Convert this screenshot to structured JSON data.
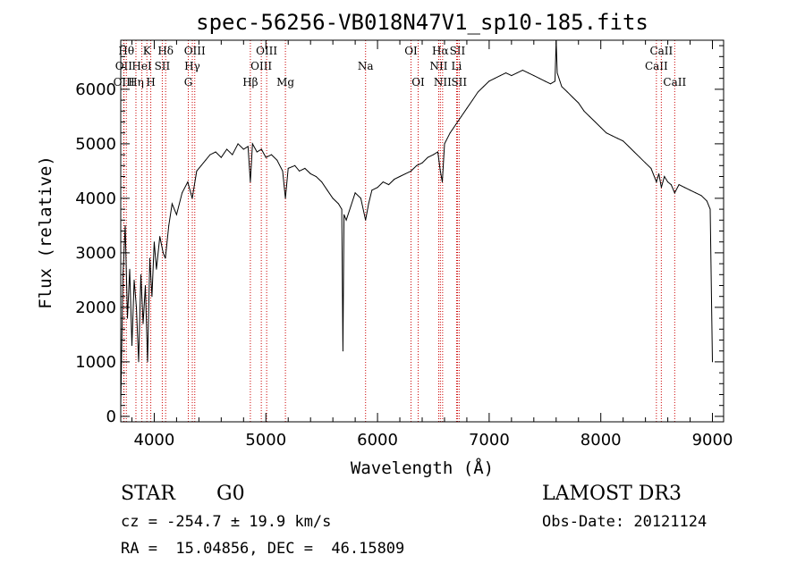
{
  "chart_data": {
    "type": "line",
    "title": "spec-56256-VB018N47V1_sp10-185.fits",
    "xlabel": "Wavelength (Å)",
    "ylabel": "Flux (relative)",
    "xlim": [
      3700,
      9100
    ],
    "ylim": [
      -100,
      6900
    ],
    "xticks": [
      4000,
      5000,
      6000,
      7000,
      8000,
      9000
    ],
    "xtick_labels": [
      "4000",
      "5000",
      "6000",
      "7000",
      "8000",
      "9000"
    ],
    "yticks": [
      0,
      1000,
      2000,
      3000,
      4000,
      5000,
      6000
    ],
    "ytick_labels": [
      "0",
      "1000",
      "2000",
      "3000",
      "4000",
      "5000",
      "6000"
    ],
    "grid": false,
    "series": [
      {
        "name": "spectrum",
        "color": "#000000",
        "points": [
          [
            3700,
            200
          ],
          [
            3720,
            2600
          ],
          [
            3740,
            3500
          ],
          [
            3760,
            1800
          ],
          [
            3780,
            2700
          ],
          [
            3800,
            1300
          ],
          [
            3820,
            2500
          ],
          [
            3840,
            2000
          ],
          [
            3860,
            1000
          ],
          [
            3880,
            2600
          ],
          [
            3900,
            1700
          ],
          [
            3920,
            2400
          ],
          [
            3940,
            1000
          ],
          [
            3960,
            2900
          ],
          [
            3980,
            2200
          ],
          [
            4000,
            3200
          ],
          [
            4020,
            2700
          ],
          [
            4050,
            3300
          ],
          [
            4080,
            3000
          ],
          [
            4100,
            2900
          ],
          [
            4130,
            3500
          ],
          [
            4160,
            3900
          ],
          [
            4200,
            3700
          ],
          [
            4250,
            4100
          ],
          [
            4300,
            4300
          ],
          [
            4340,
            4000
          ],
          [
            4380,
            4500
          ],
          [
            4420,
            4600
          ],
          [
            4460,
            4700
          ],
          [
            4500,
            4800
          ],
          [
            4550,
            4850
          ],
          [
            4600,
            4750
          ],
          [
            4650,
            4900
          ],
          [
            4700,
            4800
          ],
          [
            4750,
            5000
          ],
          [
            4800,
            4900
          ],
          [
            4840,
            4950
          ],
          [
            4861,
            4300
          ],
          [
            4880,
            5000
          ],
          [
            4920,
            4850
          ],
          [
            4960,
            4900
          ],
          [
            5000,
            4750
          ],
          [
            5050,
            4800
          ],
          [
            5100,
            4700
          ],
          [
            5150,
            4500
          ],
          [
            5175,
            4000
          ],
          [
            5200,
            4550
          ],
          [
            5260,
            4600
          ],
          [
            5300,
            4500
          ],
          [
            5350,
            4550
          ],
          [
            5400,
            4450
          ],
          [
            5450,
            4400
          ],
          [
            5500,
            4300
          ],
          [
            5550,
            4150
          ],
          [
            5600,
            4000
          ],
          [
            5650,
            3900
          ],
          [
            5680,
            3800
          ],
          [
            5690,
            1200
          ],
          [
            5700,
            3700
          ],
          [
            5720,
            3600
          ],
          [
            5760,
            3850
          ],
          [
            5800,
            4100
          ],
          [
            5850,
            4000
          ],
          [
            5893,
            3600
          ],
          [
            5920,
            3900
          ],
          [
            5950,
            4150
          ],
          [
            6000,
            4200
          ],
          [
            6050,
            4300
          ],
          [
            6100,
            4250
          ],
          [
            6150,
            4350
          ],
          [
            6200,
            4400
          ],
          [
            6250,
            4450
          ],
          [
            6300,
            4500
          ],
          [
            6350,
            4600
          ],
          [
            6400,
            4650
          ],
          [
            6450,
            4750
          ],
          [
            6500,
            4800
          ],
          [
            6540,
            4850
          ],
          [
            6563,
            4500
          ],
          [
            6580,
            4300
          ],
          [
            6600,
            5000
          ],
          [
            6650,
            5200
          ],
          [
            6700,
            5350
          ],
          [
            6750,
            5500
          ],
          [
            6800,
            5650
          ],
          [
            6850,
            5800
          ],
          [
            6900,
            5950
          ],
          [
            6950,
            6050
          ],
          [
            7000,
            6150
          ],
          [
            7050,
            6200
          ],
          [
            7100,
            6250
          ],
          [
            7150,
            6300
          ],
          [
            7200,
            6250
          ],
          [
            7250,
            6300
          ],
          [
            7300,
            6350
          ],
          [
            7350,
            6300
          ],
          [
            7400,
            6250
          ],
          [
            7450,
            6200
          ],
          [
            7500,
            6150
          ],
          [
            7550,
            6100
          ],
          [
            7590,
            6150
          ],
          [
            7600,
            6900
          ],
          [
            7610,
            6300
          ],
          [
            7650,
            6050
          ],
          [
            7700,
            5950
          ],
          [
            7750,
            5850
          ],
          [
            7800,
            5750
          ],
          [
            7850,
            5600
          ],
          [
            7900,
            5500
          ],
          [
            7950,
            5400
          ],
          [
            8000,
            5300
          ],
          [
            8050,
            5200
          ],
          [
            8100,
            5150
          ],
          [
            8150,
            5100
          ],
          [
            8200,
            5050
          ],
          [
            8250,
            4950
          ],
          [
            8300,
            4850
          ],
          [
            8350,
            4750
          ],
          [
            8400,
            4650
          ],
          [
            8450,
            4550
          ],
          [
            8498,
            4300
          ],
          [
            8520,
            4450
          ],
          [
            8542,
            4200
          ],
          [
            8570,
            4400
          ],
          [
            8600,
            4300
          ],
          [
            8630,
            4250
          ],
          [
            8662,
            4100
          ],
          [
            8700,
            4250
          ],
          [
            8750,
            4200
          ],
          [
            8800,
            4150
          ],
          [
            8850,
            4100
          ],
          [
            8900,
            4050
          ],
          [
            8950,
            3950
          ],
          [
            8980,
            3800
          ],
          [
            9000,
            1000
          ]
        ]
      }
    ],
    "line_markers": [
      {
        "label": "OII",
        "x": 3727,
        "row": 2
      },
      {
        "label": "OIII",
        "x": 3729,
        "row": 3
      },
      {
        "label": "Hθ",
        "x": 3750,
        "row": 1
      },
      {
        "label": "Hη",
        "x": 3836,
        "row": 3
      },
      {
        "label": "HeI",
        "x": 3889,
        "row": 2
      },
      {
        "label": "K",
        "x": 3934,
        "row": 1
      },
      {
        "label": "H",
        "x": 3969,
        "row": 3
      },
      {
        "label": "SII",
        "x": 4072,
        "row": 2
      },
      {
        "label": "Hδ",
        "x": 4102,
        "row": 1
      },
      {
        "label": "G",
        "x": 4305,
        "row": 3
      },
      {
        "label": "Hγ",
        "x": 4341,
        "row": 2
      },
      {
        "label": "OIII",
        "x": 4363,
        "row": 1
      },
      {
        "label": "Hβ",
        "x": 4861,
        "row": 3
      },
      {
        "label": "OIII",
        "x": 4959,
        "row": 2
      },
      {
        "label": "OIII",
        "x": 5007,
        "row": 1
      },
      {
        "label": "Mg",
        "x": 5175,
        "row": 3
      },
      {
        "label": "Na",
        "x": 5893,
        "row": 2
      },
      {
        "label": "OI",
        "x": 6300,
        "row": 1
      },
      {
        "label": "OI",
        "x": 6364,
        "row": 3
      },
      {
        "label": "NII",
        "x": 6548,
        "row": 2
      },
      {
        "label": "Hα",
        "x": 6563,
        "row": 1
      },
      {
        "label": "NII",
        "x": 6583,
        "row": 3
      },
      {
        "label": "Li",
        "x": 6708,
        "row": 2
      },
      {
        "label": "SII",
        "x": 6716,
        "row": 1
      },
      {
        "label": "SII",
        "x": 6731,
        "row": 3
      },
      {
        "label": "CaII",
        "x": 8498,
        "row": 2
      },
      {
        "label": "CaII",
        "x": 8542,
        "row": 1
      },
      {
        "label": "CaII",
        "x": 8662,
        "row": 3
      }
    ]
  },
  "info": {
    "class": "STAR",
    "subclass": "G0",
    "survey": "LAMOST DR3",
    "cz": "cz = -254.7 ± 19.9 km/s",
    "obs_date": "Obs-Date: 20121124",
    "coords": "RA =  15.04856, DEC =  46.15809"
  },
  "colors": {
    "spectrum": "#000000",
    "marker_line": "#cc0000",
    "axes": "#000000"
  }
}
